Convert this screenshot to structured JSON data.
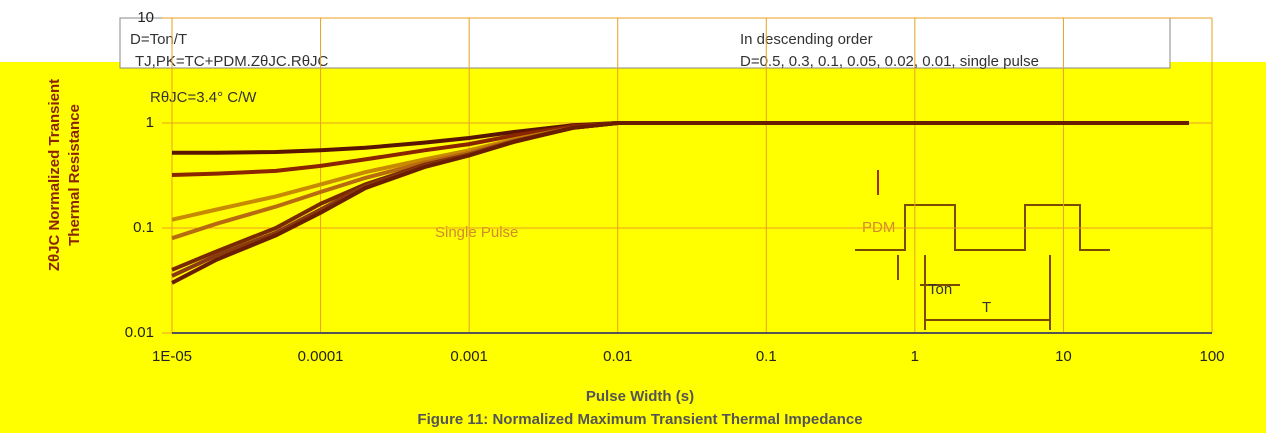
{
  "chart_data": {
    "type": "line",
    "title": "Figure 11: Normalized Maximum Transient Thermal Impedance",
    "x_label": "Pulse Width (s)",
    "y_label": [
      "ZθJC Normalized Transient",
      "Thermal Resistance"
    ],
    "x_log": true,
    "y_log": true,
    "grid": true,
    "xlim": [
      1e-05,
      100
    ],
    "ylim": [
      0.01,
      10
    ],
    "xticks": [
      {
        "value": 1e-05,
        "label": "1E-05"
      },
      0.0001,
      0.001,
      0.01,
      0.1,
      1,
      10,
      100
    ],
    "yticks": [
      0.01,
      0.1,
      1,
      10
    ],
    "x": [
      1e-05,
      2e-05,
      5e-05,
      0.0001,
      0.0002,
      0.0005,
      0.001,
      0.002,
      0.005,
      0.01,
      0.02,
      0.1,
      1,
      10,
      70
    ],
    "series": [
      {
        "color": "#5a1500",
        "values": [
          0.52,
          0.52,
          0.53,
          0.55,
          0.58,
          0.65,
          0.72,
          0.82,
          0.95,
          1,
          1,
          1,
          1,
          1,
          1
        ]
      },
      {
        "color": "#8b2500",
        "values": [
          0.32,
          0.33,
          0.35,
          0.39,
          0.45,
          0.55,
          0.63,
          0.76,
          0.93,
          1,
          1,
          1,
          1,
          1,
          1
        ]
      },
      {
        "color": "#c88a00",
        "values": [
          0.12,
          0.15,
          0.2,
          0.26,
          0.34,
          0.45,
          0.55,
          0.7,
          0.9,
          1,
          1,
          1,
          1,
          1,
          1
        ]
      },
      {
        "color": "#b86a10",
        "values": [
          0.08,
          0.11,
          0.16,
          0.22,
          0.3,
          0.42,
          0.52,
          0.68,
          0.9,
          1,
          1,
          1,
          1,
          1,
          1
        ]
      },
      {
        "color": "#7a2a00",
        "values": [
          0.04,
          0.06,
          0.1,
          0.17,
          0.26,
          0.4,
          0.5,
          0.67,
          0.9,
          1,
          1,
          1,
          1,
          1,
          1
        ]
      },
      {
        "color": "#8b3a10",
        "values": [
          0.035,
          0.055,
          0.09,
          0.15,
          0.25,
          0.39,
          0.5,
          0.67,
          0.9,
          1,
          1,
          1,
          1,
          1,
          1
        ]
      },
      {
        "color": "#6a1e00",
        "values": [
          0.03,
          0.05,
          0.085,
          0.14,
          0.24,
          0.38,
          0.49,
          0.66,
          0.9,
          1,
          1,
          1,
          1,
          1,
          1
        ]
      }
    ],
    "annotations": [
      "D=Ton/T",
      "TJ,PK=TC+PDM.ZθJC.RθJC",
      "RθJC=3.4° C/W",
      "In descending order",
      "D=0.5, 0.3, 0.1, 0.05, 0.02, 0.01, single pulse",
      "Single Pulse",
      "PDM",
      "Ton",
      "T"
    ]
  }
}
